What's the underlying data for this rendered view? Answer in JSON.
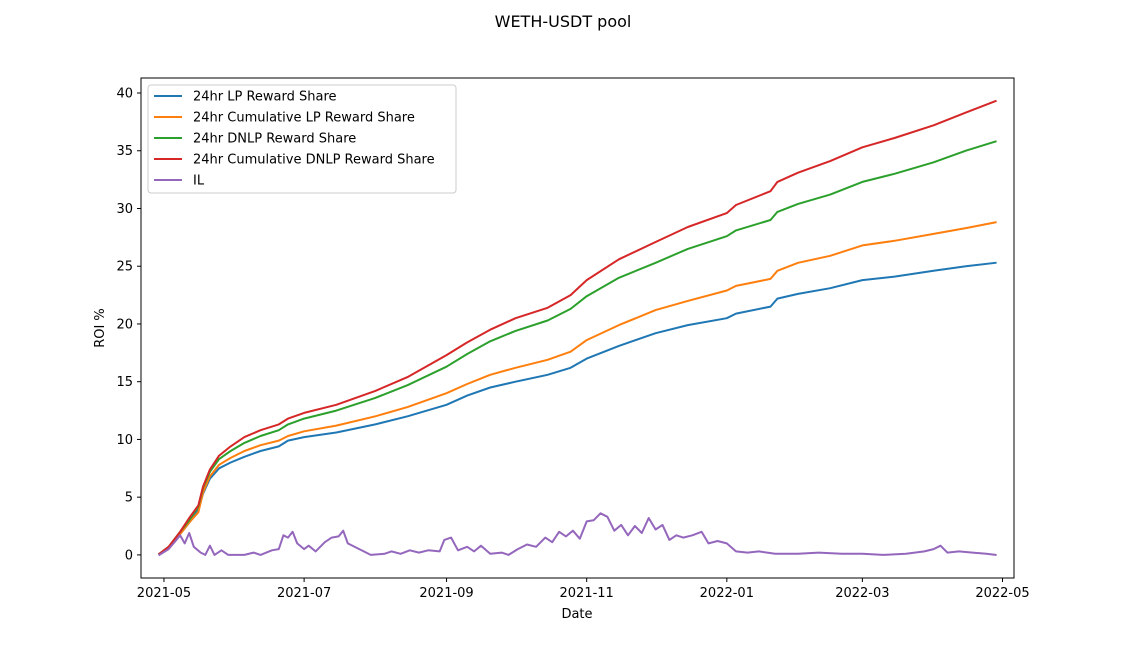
{
  "chart_data": {
    "type": "line",
    "title": "WETH-USDT pool",
    "xlabel": "Date",
    "ylabel": "ROI %",
    "xlim": [
      "2021-04-21",
      "2022-05-06"
    ],
    "ylim": [
      -2.0,
      41.3
    ],
    "x_ticks": [
      "2021-05-01",
      "2021-07-01",
      "2021-09-01",
      "2021-11-01",
      "2022-01-01",
      "2022-03-01",
      "2022-05-01"
    ],
    "x_tick_labels": [
      "2021-05",
      "2021-07",
      "2021-09",
      "2021-11",
      "2022-01",
      "2022-03",
      "2022-05"
    ],
    "y_ticks": [
      0,
      5,
      10,
      15,
      20,
      25,
      30,
      35,
      40
    ],
    "y_tick_labels": [
      "0",
      "5",
      "10",
      "15",
      "20",
      "25",
      "30",
      "35",
      "40"
    ],
    "grid": false,
    "legend_position": "top-left",
    "series": [
      {
        "name": "24hr LP Reward Share",
        "color": "#1f77b4",
        "points": [
          [
            "2021-04-29",
            0.1
          ],
          [
            "2021-05-03",
            0.6
          ],
          [
            "2021-05-08",
            1.8
          ],
          [
            "2021-05-12",
            2.8
          ],
          [
            "2021-05-16",
            3.9
          ],
          [
            "2021-05-18",
            5.3
          ],
          [
            "2021-05-21",
            6.6
          ],
          [
            "2021-05-25",
            7.5
          ],
          [
            "2021-05-30",
            8.0
          ],
          [
            "2021-06-05",
            8.5
          ],
          [
            "2021-06-12",
            9.0
          ],
          [
            "2021-06-20",
            9.4
          ],
          [
            "2021-06-24",
            9.9
          ],
          [
            "2021-07-01",
            10.2
          ],
          [
            "2021-07-15",
            10.6
          ],
          [
            "2021-08-01",
            11.3
          ],
          [
            "2021-08-15",
            12.0
          ],
          [
            "2021-09-01",
            13.0
          ],
          [
            "2021-09-10",
            13.8
          ],
          [
            "2021-09-20",
            14.5
          ],
          [
            "2021-10-01",
            15.0
          ],
          [
            "2021-10-15",
            15.6
          ],
          [
            "2021-10-25",
            16.2
          ],
          [
            "2021-11-01",
            17.0
          ],
          [
            "2021-11-15",
            18.1
          ],
          [
            "2021-12-01",
            19.2
          ],
          [
            "2021-12-15",
            19.9
          ],
          [
            "2022-01-01",
            20.5
          ],
          [
            "2022-01-05",
            20.9
          ],
          [
            "2022-01-20",
            21.5
          ],
          [
            "2022-01-23",
            22.2
          ],
          [
            "2022-02-01",
            22.6
          ],
          [
            "2022-02-15",
            23.1
          ],
          [
            "2022-03-01",
            23.8
          ],
          [
            "2022-03-15",
            24.1
          ],
          [
            "2022-04-01",
            24.6
          ],
          [
            "2022-04-15",
            25.0
          ],
          [
            "2022-04-28",
            25.3
          ]
        ]
      },
      {
        "name": "24hr Cumulative LP Reward Share",
        "color": "#ff7f0e",
        "points": [
          [
            "2021-04-29",
            0.1
          ],
          [
            "2021-05-03",
            0.6
          ],
          [
            "2021-05-08",
            1.8
          ],
          [
            "2021-05-12",
            2.8
          ],
          [
            "2021-05-16",
            3.7
          ],
          [
            "2021-05-18",
            5.4
          ],
          [
            "2021-05-21",
            6.8
          ],
          [
            "2021-05-25",
            7.8
          ],
          [
            "2021-05-30",
            8.4
          ],
          [
            "2021-06-05",
            9.0
          ],
          [
            "2021-06-12",
            9.5
          ],
          [
            "2021-06-20",
            9.9
          ],
          [
            "2021-06-24",
            10.3
          ],
          [
            "2021-07-01",
            10.7
          ],
          [
            "2021-07-15",
            11.2
          ],
          [
            "2021-08-01",
            12.0
          ],
          [
            "2021-08-15",
            12.8
          ],
          [
            "2021-09-01",
            14.0
          ],
          [
            "2021-09-10",
            14.8
          ],
          [
            "2021-09-20",
            15.6
          ],
          [
            "2021-10-01",
            16.2
          ],
          [
            "2021-10-15",
            16.9
          ],
          [
            "2021-10-25",
            17.6
          ],
          [
            "2021-11-01",
            18.6
          ],
          [
            "2021-11-15",
            19.9
          ],
          [
            "2021-12-01",
            21.2
          ],
          [
            "2021-12-15",
            22.0
          ],
          [
            "2022-01-01",
            22.9
          ],
          [
            "2022-01-05",
            23.3
          ],
          [
            "2022-01-20",
            23.9
          ],
          [
            "2022-01-23",
            24.6
          ],
          [
            "2022-02-01",
            25.3
          ],
          [
            "2022-02-15",
            25.9
          ],
          [
            "2022-03-01",
            26.8
          ],
          [
            "2022-03-15",
            27.2
          ],
          [
            "2022-04-01",
            27.8
          ],
          [
            "2022-04-15",
            28.3
          ],
          [
            "2022-04-28",
            28.8
          ]
        ]
      },
      {
        "name": "24hr DNLP Reward Share",
        "color": "#2ca02c",
        "points": [
          [
            "2021-04-29",
            0.1
          ],
          [
            "2021-05-03",
            0.7
          ],
          [
            "2021-05-08",
            2.0
          ],
          [
            "2021-05-12",
            3.0
          ],
          [
            "2021-05-16",
            4.2
          ],
          [
            "2021-05-18",
            5.8
          ],
          [
            "2021-05-21",
            7.2
          ],
          [
            "2021-05-25",
            8.3
          ],
          [
            "2021-05-30",
            9.0
          ],
          [
            "2021-06-05",
            9.7
          ],
          [
            "2021-06-12",
            10.3
          ],
          [
            "2021-06-20",
            10.8
          ],
          [
            "2021-06-24",
            11.3
          ],
          [
            "2021-07-01",
            11.8
          ],
          [
            "2021-07-15",
            12.5
          ],
          [
            "2021-08-01",
            13.6
          ],
          [
            "2021-08-15",
            14.7
          ],
          [
            "2021-09-01",
            16.3
          ],
          [
            "2021-09-10",
            17.4
          ],
          [
            "2021-09-20",
            18.5
          ],
          [
            "2021-10-01",
            19.4
          ],
          [
            "2021-10-15",
            20.3
          ],
          [
            "2021-10-25",
            21.3
          ],
          [
            "2021-11-01",
            22.4
          ],
          [
            "2021-11-15",
            24.0
          ],
          [
            "2021-12-01",
            25.3
          ],
          [
            "2021-12-15",
            26.5
          ],
          [
            "2022-01-01",
            27.6
          ],
          [
            "2022-01-05",
            28.1
          ],
          [
            "2022-01-20",
            29.0
          ],
          [
            "2022-01-23",
            29.7
          ],
          [
            "2022-02-01",
            30.4
          ],
          [
            "2022-02-15",
            31.2
          ],
          [
            "2022-03-01",
            32.3
          ],
          [
            "2022-03-15",
            33.0
          ],
          [
            "2022-04-01",
            34.0
          ],
          [
            "2022-04-15",
            35.0
          ],
          [
            "2022-04-28",
            35.8
          ]
        ]
      },
      {
        "name": "24hr Cumulative DNLP Reward Share",
        "color": "#d62728",
        "points": [
          [
            "2021-04-29",
            0.1
          ],
          [
            "2021-05-03",
            0.7
          ],
          [
            "2021-05-08",
            2.0
          ],
          [
            "2021-05-12",
            3.2
          ],
          [
            "2021-05-16",
            4.3
          ],
          [
            "2021-05-18",
            5.9
          ],
          [
            "2021-05-21",
            7.4
          ],
          [
            "2021-05-25",
            8.6
          ],
          [
            "2021-05-30",
            9.4
          ],
          [
            "2021-06-05",
            10.2
          ],
          [
            "2021-06-12",
            10.8
          ],
          [
            "2021-06-20",
            11.3
          ],
          [
            "2021-06-24",
            11.8
          ],
          [
            "2021-07-01",
            12.3
          ],
          [
            "2021-07-15",
            13.0
          ],
          [
            "2021-08-01",
            14.2
          ],
          [
            "2021-08-15",
            15.4
          ],
          [
            "2021-09-01",
            17.3
          ],
          [
            "2021-09-10",
            18.4
          ],
          [
            "2021-09-20",
            19.5
          ],
          [
            "2021-10-01",
            20.5
          ],
          [
            "2021-10-15",
            21.4
          ],
          [
            "2021-10-25",
            22.5
          ],
          [
            "2021-11-01",
            23.8
          ],
          [
            "2021-11-15",
            25.6
          ],
          [
            "2021-12-01",
            27.1
          ],
          [
            "2021-12-15",
            28.4
          ],
          [
            "2022-01-01",
            29.6
          ],
          [
            "2022-01-05",
            30.3
          ],
          [
            "2022-01-20",
            31.5
          ],
          [
            "2022-01-23",
            32.3
          ],
          [
            "2022-02-01",
            33.1
          ],
          [
            "2022-02-15",
            34.1
          ],
          [
            "2022-03-01",
            35.3
          ],
          [
            "2022-03-15",
            36.1
          ],
          [
            "2022-04-01",
            37.2
          ],
          [
            "2022-04-15",
            38.3
          ],
          [
            "2022-04-28",
            39.3
          ]
        ]
      },
      {
        "name": "IL",
        "color": "#9467bd",
        "points": [
          [
            "2021-04-29",
            0.0
          ],
          [
            "2021-05-03",
            0.5
          ],
          [
            "2021-05-06",
            1.2
          ],
          [
            "2021-05-08",
            1.7
          ],
          [
            "2021-05-10",
            1.0
          ],
          [
            "2021-05-12",
            1.9
          ],
          [
            "2021-05-14",
            0.7
          ],
          [
            "2021-05-17",
            0.2
          ],
          [
            "2021-05-19",
            0.0
          ],
          [
            "2021-05-21",
            0.8
          ],
          [
            "2021-05-23",
            0.0
          ],
          [
            "2021-05-26",
            0.4
          ],
          [
            "2021-05-29",
            0.0
          ],
          [
            "2021-06-05",
            0.0
          ],
          [
            "2021-06-09",
            0.2
          ],
          [
            "2021-06-12",
            0.0
          ],
          [
            "2021-06-17",
            0.4
          ],
          [
            "2021-06-20",
            0.5
          ],
          [
            "2021-06-22",
            1.7
          ],
          [
            "2021-06-24",
            1.5
          ],
          [
            "2021-06-26",
            2.0
          ],
          [
            "2021-06-28",
            1.0
          ],
          [
            "2021-07-01",
            0.5
          ],
          [
            "2021-07-03",
            0.8
          ],
          [
            "2021-07-06",
            0.3
          ],
          [
            "2021-07-10",
            1.1
          ],
          [
            "2021-07-13",
            1.5
          ],
          [
            "2021-07-16",
            1.6
          ],
          [
            "2021-07-18",
            2.1
          ],
          [
            "2021-07-20",
            1.0
          ],
          [
            "2021-07-25",
            0.5
          ],
          [
            "2021-07-30",
            0.0
          ],
          [
            "2021-08-05",
            0.1
          ],
          [
            "2021-08-08",
            0.3
          ],
          [
            "2021-08-12",
            0.1
          ],
          [
            "2021-08-16",
            0.4
          ],
          [
            "2021-08-20",
            0.2
          ],
          [
            "2021-08-24",
            0.4
          ],
          [
            "2021-08-29",
            0.3
          ],
          [
            "2021-08-31",
            1.3
          ],
          [
            "2021-09-03",
            1.5
          ],
          [
            "2021-09-06",
            0.4
          ],
          [
            "2021-09-10",
            0.7
          ],
          [
            "2021-09-13",
            0.3
          ],
          [
            "2021-09-16",
            0.8
          ],
          [
            "2021-09-20",
            0.1
          ],
          [
            "2021-09-25",
            0.2
          ],
          [
            "2021-09-28",
            0.0
          ],
          [
            "2021-10-02",
            0.5
          ],
          [
            "2021-10-06",
            0.9
          ],
          [
            "2021-10-10",
            0.7
          ],
          [
            "2021-10-14",
            1.5
          ],
          [
            "2021-10-17",
            1.1
          ],
          [
            "2021-10-20",
            2.0
          ],
          [
            "2021-10-23",
            1.6
          ],
          [
            "2021-10-26",
            2.1
          ],
          [
            "2021-10-29",
            1.4
          ],
          [
            "2021-11-01",
            2.9
          ],
          [
            "2021-11-04",
            3.0
          ],
          [
            "2021-11-07",
            3.6
          ],
          [
            "2021-11-10",
            3.3
          ],
          [
            "2021-11-13",
            2.1
          ],
          [
            "2021-11-16",
            2.6
          ],
          [
            "2021-11-19",
            1.7
          ],
          [
            "2021-11-22",
            2.5
          ],
          [
            "2021-11-25",
            1.9
          ],
          [
            "2021-11-28",
            3.2
          ],
          [
            "2021-12-01",
            2.2
          ],
          [
            "2021-12-04",
            2.6
          ],
          [
            "2021-12-07",
            1.3
          ],
          [
            "2021-12-10",
            1.7
          ],
          [
            "2021-12-13",
            1.5
          ],
          [
            "2021-12-17",
            1.7
          ],
          [
            "2021-12-21",
            2.0
          ],
          [
            "2021-12-24",
            1.0
          ],
          [
            "2021-12-28",
            1.2
          ],
          [
            "2022-01-01",
            1.0
          ],
          [
            "2022-01-05",
            0.3
          ],
          [
            "2022-01-10",
            0.2
          ],
          [
            "2022-01-15",
            0.3
          ],
          [
            "2022-01-22",
            0.1
          ],
          [
            "2022-02-01",
            0.1
          ],
          [
            "2022-02-10",
            0.2
          ],
          [
            "2022-02-20",
            0.1
          ],
          [
            "2022-03-01",
            0.1
          ],
          [
            "2022-03-10",
            0.0
          ],
          [
            "2022-03-20",
            0.1
          ],
          [
            "2022-03-28",
            0.3
          ],
          [
            "2022-04-01",
            0.5
          ],
          [
            "2022-04-04",
            0.8
          ],
          [
            "2022-04-07",
            0.2
          ],
          [
            "2022-04-12",
            0.3
          ],
          [
            "2022-04-18",
            0.2
          ],
          [
            "2022-04-24",
            0.1
          ],
          [
            "2022-04-28",
            0.0
          ]
        ]
      }
    ]
  }
}
